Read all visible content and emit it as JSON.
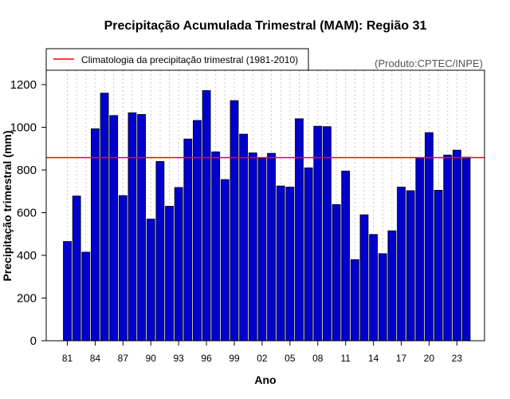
{
  "chart_data": {
    "type": "bar",
    "title": "Precipitação Acumulada Trimestral (MAM): Região 31",
    "xlabel": "Ano",
    "ylabel": "Precipitação trimestral (mm)",
    "ylim": [
      0,
      1260
    ],
    "yticks": [
      0,
      200,
      400,
      600,
      800,
      1000,
      1200
    ],
    "ytick_labels": [
      "0",
      "200",
      "400",
      "600",
      "800",
      "1000",
      "1200"
    ],
    "xtick_labels": [
      "81",
      "84",
      "87",
      "90",
      "93",
      "96",
      "99",
      "02",
      "05",
      "08",
      "11",
      "14",
      "17",
      "20",
      "23"
    ],
    "xtick_indices": [
      0,
      3,
      6,
      9,
      12,
      15,
      18,
      21,
      24,
      27,
      30,
      33,
      36,
      39,
      42
    ],
    "categories": [
      "1981",
      "1982",
      "1983",
      "1984",
      "1985",
      "1986",
      "1987",
      "1988",
      "1989",
      "1990",
      "1991",
      "1992",
      "1993",
      "1994",
      "1995",
      "1996",
      "1997",
      "1998",
      "1999",
      "2000",
      "2001",
      "2002",
      "2003",
      "2004",
      "2005",
      "2006",
      "2007",
      "2008",
      "2009",
      "2010",
      "2011",
      "2012",
      "2013",
      "2014",
      "2015",
      "2016",
      "2017",
      "2018",
      "2019",
      "2020",
      "2021",
      "2022",
      "2023",
      "2024"
    ],
    "values": [
      465,
      678,
      415,
      993,
      1160,
      1055,
      680,
      1068,
      1060,
      570,
      840,
      630,
      718,
      945,
      1032,
      1172,
      885,
      755,
      1125,
      968,
      880,
      855,
      878,
      725,
      720,
      1040,
      810,
      1005,
      1003,
      638,
      795,
      380,
      590,
      498,
      408,
      515,
      720,
      703,
      855,
      975,
      705,
      870,
      893,
      860
    ],
    "bar_color": "#0000cd",
    "grid": "vertical dotted",
    "climatology": {
      "label": "Climatologia da precipitação trimestral (1981-2010)",
      "value": 858,
      "color": "#ff0000"
    },
    "legend_position": "top-left",
    "source": "(Produto:CPTEC/INPE)"
  }
}
